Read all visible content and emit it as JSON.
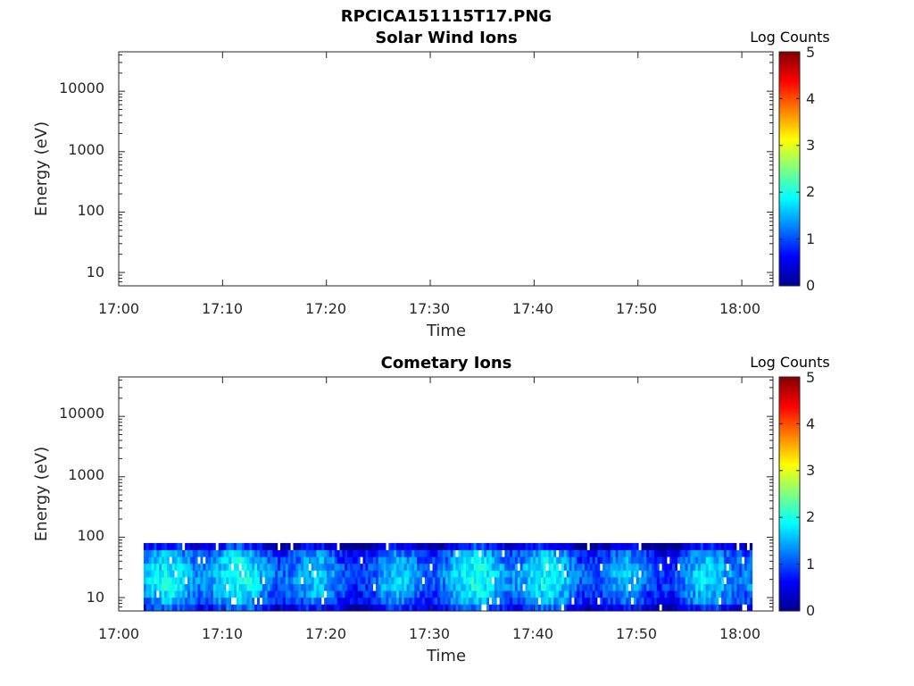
{
  "figure_title": "RPCICA151115T17.PNG",
  "colors": {
    "colormap": [
      "#00008f",
      "#0000ff",
      "#0080ff",
      "#00ffff",
      "#80ff80",
      "#ffff00",
      "#ff8000",
      "#ff0000",
      "#800000"
    ],
    "axis": "#262626",
    "background": "#ffffff"
  },
  "chart_data": [
    {
      "type": "heatmap",
      "title": "Solar Wind Ions",
      "xlabel": "Time",
      "ylabel": "Energy (eV)",
      "x_ticks": [
        "17:00",
        "17:10",
        "17:20",
        "17:30",
        "17:40",
        "17:50",
        "18:00"
      ],
      "xlim": [
        "17:00",
        "18:03"
      ],
      "y_scale": "log",
      "y_ticks": [
        "10",
        "100",
        "1000",
        "10000"
      ],
      "ylim": [
        6,
        45000
      ],
      "colorbar": {
        "label": "Log Counts",
        "range": [
          0,
          5
        ],
        "ticks": [
          "0",
          "1",
          "2",
          "3",
          "4",
          "5"
        ]
      },
      "data_present": false
    },
    {
      "type": "heatmap",
      "title": "Cometary Ions",
      "xlabel": "Time",
      "ylabel": "Energy (eV)",
      "x_ticks": [
        "17:00",
        "17:10",
        "17:20",
        "17:30",
        "17:40",
        "17:50",
        "18:00"
      ],
      "xlim": [
        "17:00",
        "18:03"
      ],
      "y_scale": "log",
      "y_ticks": [
        "10",
        "100",
        "1000",
        "10000"
      ],
      "ylim": [
        6,
        45000
      ],
      "colorbar": {
        "label": "Log Counts",
        "range": [
          0,
          5
        ],
        "ticks": [
          "0",
          "1",
          "2",
          "3",
          "4",
          "5"
        ]
      },
      "data_present": true,
      "data_time_range": [
        "17:02",
        "18:01"
      ],
      "data_energy_range_eV": [
        6,
        80
      ],
      "typical_log_counts": [
        0.6,
        1.8
      ]
    }
  ]
}
